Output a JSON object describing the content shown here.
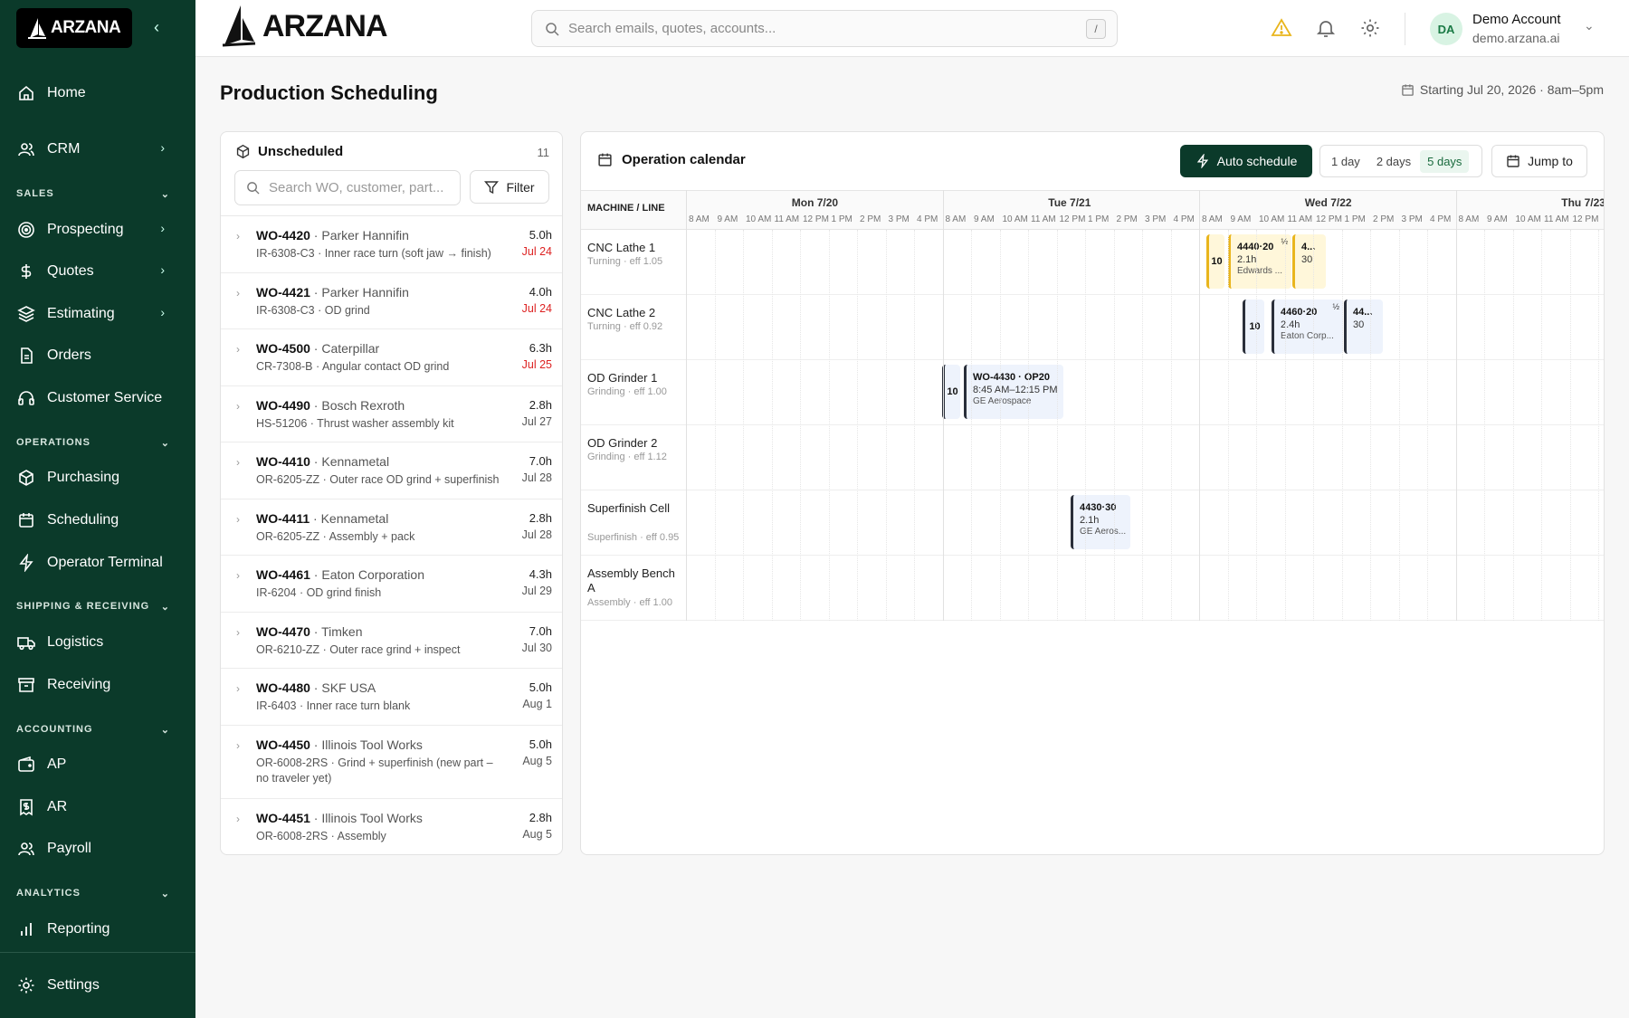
{
  "sidebar": {
    "logo": "ARZANA",
    "items": {
      "home": "Home",
      "crm": "CRM",
      "prospecting": "Prospecting",
      "quotes": "Quotes",
      "estimating": "Estimating",
      "orders": "Orders",
      "customer_service": "Customer Service",
      "purchasing": "Purchasing",
      "scheduling": "Scheduling",
      "operator_terminal": "Operator Terminal",
      "logistics": "Logistics",
      "receiving": "Receiving",
      "ap": "AP",
      "ar": "AR",
      "payroll": "Payroll",
      "reporting": "Reporting",
      "settings": "Settings"
    },
    "sections": {
      "sales": "SALES",
      "operations": "OPERATIONS",
      "shipping": "SHIPPING & RECEIVING",
      "accounting": "ACCOUNTING",
      "analytics": "ANALYTICS"
    }
  },
  "topbar": {
    "brand": "ARZANA",
    "search_placeholder": "Search emails, quotes, accounts...",
    "search_shortcut": "/",
    "account_initials": "DA",
    "account_name": "Demo Account",
    "account_org": "demo.arzana.ai",
    "colors": {
      "warning": "#e9b51c"
    }
  },
  "page": {
    "title": "Production Scheduling",
    "date_range": "Starting Jul 20, 2026 · 8am–5pm"
  },
  "unscheduled": {
    "title": "Unscheduled",
    "count": "11",
    "search_placeholder": "Search WO, customer, part...",
    "filter_label": "Filter",
    "items": [
      {
        "wo": "WO-4420",
        "customer": " · Parker Hannifin",
        "detail": "IR-6308-C3 · Inner race turn (soft jaw → finish)",
        "hours": "5.0h",
        "due": "Jul 24",
        "late": true
      },
      {
        "wo": "WO-4421",
        "customer": " · Parker Hannifin",
        "detail": "IR-6308-C3 · OD grind",
        "hours": "4.0h",
        "due": "Jul 24",
        "late": true
      },
      {
        "wo": "WO-4500",
        "customer": " · Caterpillar",
        "detail": "CR-7308-B · Angular contact OD grind",
        "hours": "6.3h",
        "due": "Jul 25",
        "late": true
      },
      {
        "wo": "WO-4490",
        "customer": " · Bosch Rexroth",
        "detail": "HS-51206 · Thrust washer assembly kit",
        "hours": "2.8h",
        "due": "Jul 27",
        "late": false
      },
      {
        "wo": "WO-4410",
        "customer": " · Kennametal",
        "detail": "OR-6205-ZZ · Outer race OD grind + superfinish",
        "hours": "7.0h",
        "due": "Jul 28",
        "late": false
      },
      {
        "wo": "WO-4411",
        "customer": " · Kennametal",
        "detail": "OR-6205-ZZ · Assembly + pack",
        "hours": "2.8h",
        "due": "Jul 28",
        "late": false
      },
      {
        "wo": "WO-4461",
        "customer": " · Eaton Corporation",
        "detail": "IR-6204 · OD grind finish",
        "hours": "4.3h",
        "due": "Jul 29",
        "late": false
      },
      {
        "wo": "WO-4470",
        "customer": " · Timken",
        "detail": "OR-6210-ZZ · Outer race grind + inspect",
        "hours": "7.0h",
        "due": "Jul 30",
        "late": false
      },
      {
        "wo": "WO-4480",
        "customer": " · SKF USA",
        "detail": "IR-6403 · Inner race turn blank",
        "hours": "5.0h",
        "due": "Aug 1",
        "late": false
      },
      {
        "wo": "WO-4450",
        "customer": " · Illinois Tool Works",
        "detail": "OR-6008-2RS · Grind + superfinish (new part – no traveler yet)",
        "hours": "5.0h",
        "due": "Aug 5",
        "late": false
      },
      {
        "wo": "WO-4451",
        "customer": " · Illinois Tool Works",
        "detail": "OR-6008-2RS · Assembly",
        "hours": "2.8h",
        "due": "Aug 5",
        "late": false
      }
    ]
  },
  "calendar": {
    "title": "Operation calendar",
    "auto_schedule": "Auto schedule",
    "views": [
      "1 day",
      "2 days",
      "5 days"
    ],
    "active_view": "5 days",
    "jump_to": "Jump to",
    "machine_header": "MACHINE / LINE",
    "days": [
      "Mon 7/20",
      "Tue 7/21",
      "Wed 7/22",
      "Thu 7/23"
    ],
    "hours": [
      "8 AM",
      "9 AM",
      "10 AM",
      "11 AM",
      "12 PM",
      "1 PM",
      "2 PM",
      "3 PM",
      "4 PM"
    ],
    "machines": [
      {
        "name": "CNC Lathe 1",
        "sub": "Turning · eff 1.05"
      },
      {
        "name": "CNC Lathe 2",
        "sub": "Turning · eff 0.92"
      },
      {
        "name": "OD Grinder 1",
        "sub": "Grinding · eff 1.00"
      },
      {
        "name": "OD Grinder 2",
        "sub": "Grinding · eff 1.12"
      },
      {
        "name": "Superfinish Cell",
        "sub": "Superfinish · eff 0.95"
      },
      {
        "name": "Assembly Bench A",
        "sub": "Assembly · eff 1.00"
      }
    ],
    "blocks": {
      "b1_tag": "10",
      "b1_t1": "4440·20",
      "b1_half": "½",
      "b1_t2": "2.1h",
      "b1_t3": "Edwards ...",
      "b2_t1": "4...",
      "b2_t2": "30",
      "b3_tag": "10",
      "b3_t1": "4460·20",
      "b3_half": "½",
      "b3_t2": "2.4h",
      "b3_t3": "Eaton Corp...",
      "b4_t1": "44...",
      "b4_t2": "30",
      "b5_tag": "10",
      "b5_t1": "WO-4430 · OP20",
      "b5_t2": "8:45 AM–12:15 PM",
      "b5_t3": "GE Aerospace",
      "b6_t1": "4430·30",
      "b6_t2": "2.1h",
      "b6_t3": "GE Aeros..."
    }
  }
}
